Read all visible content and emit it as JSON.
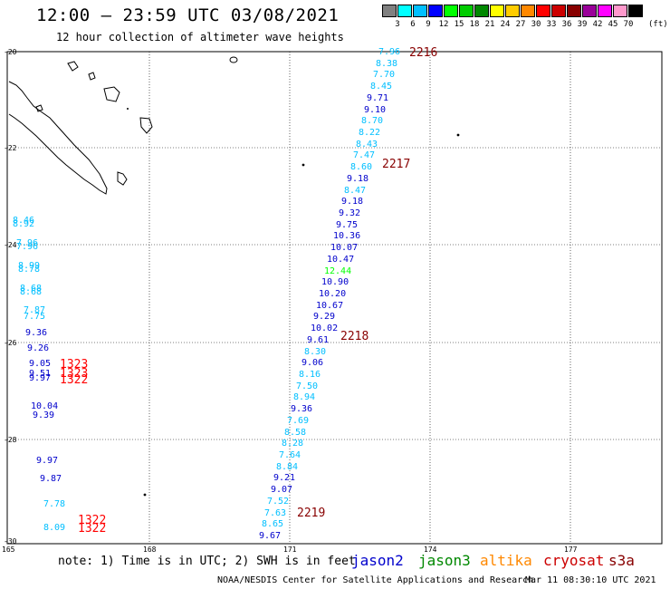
{
  "header": {
    "title": "12:00 – 23:59 UTC 03/08/2021",
    "subtitle": "12 hour collection of altimeter wave heights"
  },
  "legend": {
    "labels": [
      "3",
      "6",
      "9",
      "12",
      "15",
      "18",
      "21",
      "24",
      "27",
      "30",
      "33",
      "36",
      "39",
      "42",
      "45",
      "70"
    ],
    "colors": [
      "#808080",
      "#00ffff",
      "#00bfff",
      "#0000ff",
      "#00ff00",
      "#00cc00",
      "#008800",
      "#ffff00",
      "#ffcc00",
      "#ff8800",
      "#ff0000",
      "#cc0000",
      "#880000",
      "#990099",
      "#ff00ff",
      "#ff99cc",
      "#000000"
    ],
    "unit": "(ft)"
  },
  "axes": {
    "lat_labels": [
      "-20",
      "-22",
      "-24",
      "-26",
      "-28",
      "-30"
    ],
    "lon_labels": [
      "165",
      "168",
      "171",
      "174",
      "177"
    ]
  },
  "colors": {
    "c6": "#00bfff",
    "c9": "#0000cc",
    "c12": "#00ff00",
    "time": "#880000",
    "time2": "#ff0000"
  },
  "track_main": [
    {
      "v": "7.96",
      "c": "c6"
    },
    {
      "v": "8.38",
      "c": "c6"
    },
    {
      "v": "7.70",
      "c": "c6"
    },
    {
      "v": "8.45",
      "c": "c6"
    },
    {
      "v": "9.71",
      "c": "c9"
    },
    {
      "v": "9.10",
      "c": "c9"
    },
    {
      "v": "8.70",
      "c": "c6"
    },
    {
      "v": "8.22",
      "c": "c6"
    },
    {
      "v": "8.43",
      "c": "c6"
    },
    {
      "v": "7.47",
      "c": "c6"
    },
    {
      "v": "8.60",
      "c": "c6"
    },
    {
      "v": "9.18",
      "c": "c9"
    },
    {
      "v": "8.47",
      "c": "c6"
    },
    {
      "v": "9.18",
      "c": "c9"
    },
    {
      "v": "9.32",
      "c": "c9"
    },
    {
      "v": "9.75",
      "c": "c9"
    },
    {
      "v": "10.36",
      "c": "c9"
    },
    {
      "v": "10.07",
      "c": "c9"
    },
    {
      "v": "10.47",
      "c": "c9"
    },
    {
      "v": "12.44",
      "c": "c12"
    },
    {
      "v": "10.90",
      "c": "c9"
    },
    {
      "v": "10.20",
      "c": "c9"
    },
    {
      "v": "10.67",
      "c": "c9"
    },
    {
      "v": "9.29",
      "c": "c9"
    },
    {
      "v": "10.02",
      "c": "c9"
    },
    {
      "v": "9.61",
      "c": "c9"
    },
    {
      "v": "8.30",
      "c": "c6"
    },
    {
      "v": "9.06",
      "c": "c9"
    },
    {
      "v": "8.16",
      "c": "c6"
    },
    {
      "v": "7.50",
      "c": "c6"
    },
    {
      "v": "8.94",
      "c": "c6"
    },
    {
      "v": "9.36",
      "c": "c9"
    },
    {
      "v": "7.69",
      "c": "c6"
    },
    {
      "v": "8.58",
      "c": "c6"
    },
    {
      "v": "8.28",
      "c": "c6"
    },
    {
      "v": "7.64",
      "c": "c6"
    },
    {
      "v": "8.84",
      "c": "c6"
    },
    {
      "v": "9.21",
      "c": "c9"
    },
    {
      "v": "9.07",
      "c": "c9"
    },
    {
      "v": "7.52",
      "c": "c6"
    },
    {
      "v": "7.63",
      "c": "c6"
    },
    {
      "v": "8.65",
      "c": "c6"
    },
    {
      "v": "9.67",
      "c": "c9"
    }
  ],
  "track_main_times": [
    "2216",
    "2217",
    "2218",
    "2219"
  ],
  "track_left": [
    {
      "v": "8.46",
      "c": "c6"
    },
    {
      "v": "8.92",
      "c": "c6"
    },
    {
      "v": "7.96",
      "c": "c6"
    },
    {
      "v": "7.96",
      "c": "c6"
    },
    {
      "v": "8.99",
      "c": "c6"
    },
    {
      "v": "8.78",
      "c": "c6"
    },
    {
      "v": "8.68",
      "c": "c6"
    },
    {
      "v": "8.68",
      "c": "c6"
    },
    {
      "v": "7.87",
      "c": "c6"
    },
    {
      "v": "7.75",
      "c": "c6"
    },
    {
      "v": "9.36",
      "c": "c9"
    },
    {
      "v": "9.26",
      "c": "c9"
    },
    {
      "v": "9.05",
      "c": "c9"
    },
    {
      "v": "9.51",
      "c": "c9"
    },
    {
      "v": "9.97",
      "c": "c9"
    },
    {
      "v": "10.04",
      "c": "c9"
    },
    {
      "v": "9.39",
      "c": "c9"
    },
    {
      "v": "9.97",
      "c": "c9"
    },
    {
      "v": "9.87",
      "c": "c9"
    },
    {
      "v": "7.78",
      "c": "c6"
    },
    {
      "v": "8.09",
      "c": "c6"
    }
  ],
  "track_left_times": [
    "1323",
    "1323",
    "1322",
    "1322",
    "1322"
  ],
  "footer": {
    "note": "note: 1) Time is in UTC; 2) SWH is in feet",
    "satellites": [
      {
        "name": "jason2",
        "color": "#0000cc"
      },
      {
        "name": "jason3",
        "color": "#008800"
      },
      {
        "name": "altika",
        "color": "#ff8800"
      },
      {
        "name": "cryosat",
        "color": "#cc0000"
      },
      {
        "name": "s3a",
        "color": "#880000"
      }
    ],
    "credit": "NOAA/NESDIS Center for Satellite Applications and Research",
    "timestamp": "Mar 11 08:30:10 UTC 2021"
  }
}
